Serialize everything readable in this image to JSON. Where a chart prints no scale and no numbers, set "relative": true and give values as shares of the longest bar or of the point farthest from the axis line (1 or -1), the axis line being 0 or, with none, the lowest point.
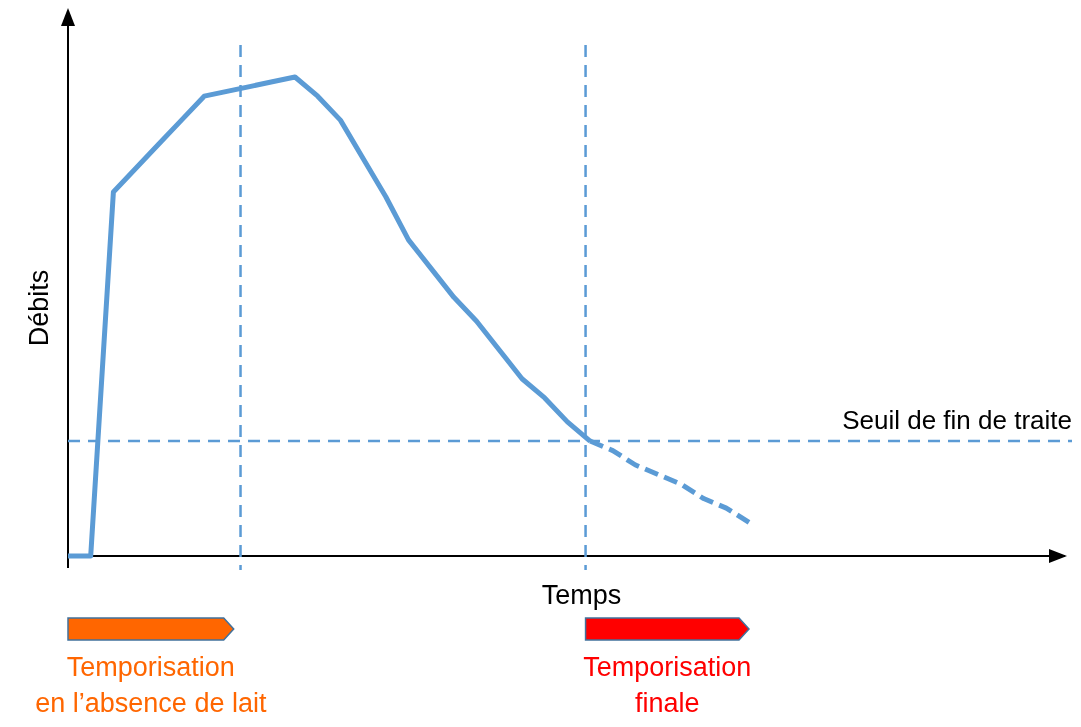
{
  "chart_data": {
    "type": "line",
    "relative": true,
    "xlabel": "Temps",
    "ylabel": "Débits",
    "categories": [
      null,
      null,
      null,
      null,
      null,
      null,
      null,
      null,
      null,
      null,
      null,
      null,
      null,
      null,
      null,
      null,
      null,
      null,
      null,
      null,
      null,
      null,
      null,
      null,
      null,
      null,
      null,
      null,
      null,
      null,
      null,
      null,
      null,
      null,
      null,
      null,
      null,
      null,
      null,
      null,
      null,
      null,
      null,
      null
    ],
    "series": [
      {
        "color": "#5b9bd5",
        "line_style": "solid",
        "values": [
          0,
          0,
          0.76,
          0.81,
          0.86,
          0.91,
          0.96,
          0.97,
          0.98,
          0.99,
          1,
          0.96,
          0.91,
          0.83,
          0.75,
          0.66,
          0.6,
          0.54,
          0.49,
          0.43,
          0.37,
          0.33,
          0.28,
          0.24,
          null,
          null,
          null,
          null,
          null,
          null,
          null,
          null,
          null,
          null,
          null,
          null,
          null,
          null,
          null,
          null,
          null,
          null,
          null,
          null
        ]
      },
      {
        "color": "#5b9bd5",
        "line_style": "dashed",
        "values": [
          null,
          null,
          null,
          null,
          null,
          null,
          null,
          null,
          null,
          null,
          null,
          null,
          null,
          null,
          null,
          null,
          null,
          null,
          null,
          null,
          null,
          null,
          null,
          0.24,
          0.22,
          0.19,
          0.17,
          0.15,
          0.12,
          0.1,
          0.07,
          null,
          null,
          null,
          null,
          null,
          null,
          null,
          null,
          null,
          null,
          null,
          null,
          null
        ]
      }
    ],
    "ref_lines": [
      {
        "axis": "y",
        "value": 0.24,
        "label": "Seuil de fin de traite",
        "color": "#5b9bd5",
        "line_style": "dashed"
      }
    ],
    "annotations": [
      "Temporisation\nen l’absence de lait",
      "Temporisation\nfinale"
    ]
  }
}
